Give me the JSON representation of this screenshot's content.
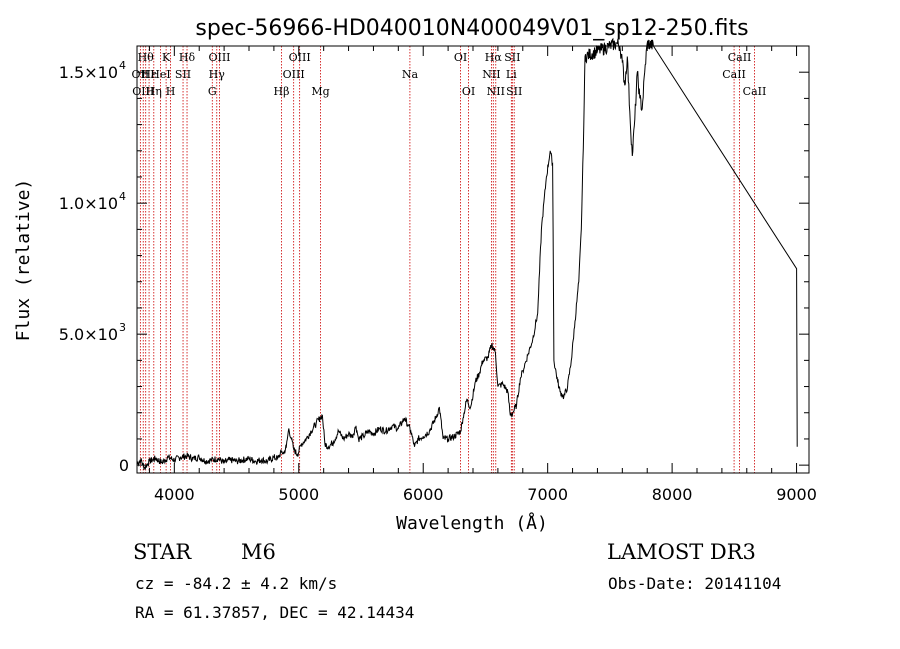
{
  "chart_data": {
    "type": "line",
    "title": "spec-56966-HD040010N400049V01_sp12-250.fits",
    "xlabel": "Wavelength (Å)",
    "ylabel": "Flux (relative)",
    "xlim": [
      3700,
      9100
    ],
    "ylim": [
      -300,
      16000
    ],
    "xticks": [
      {
        "value": 4000,
        "label": "4000"
      },
      {
        "value": 5000,
        "label": "5000"
      },
      {
        "value": 6000,
        "label": "6000"
      },
      {
        "value": 7000,
        "label": "7000"
      },
      {
        "value": 8000,
        "label": "8000"
      },
      {
        "value": 9000,
        "label": "9000"
      }
    ],
    "yticks": [
      {
        "value": 0,
        "mant": "0",
        "exp": ""
      },
      {
        "value": 5000,
        "mant": "5.0×10",
        "exp": "3"
      },
      {
        "value": 10000,
        "mant": "1.0×10",
        "exp": "4"
      },
      {
        "value": 15000,
        "mant": "1.5×10",
        "exp": "4"
      }
    ],
    "line_color": "#000000",
    "marker_color": "#cc0000",
    "series": [
      {
        "points": [
          [
            3700,
            50
          ],
          [
            3730,
            200
          ],
          [
            3760,
            -100
          ],
          [
            3800,
            150
          ],
          [
            3850,
            250
          ],
          [
            3900,
            100
          ],
          [
            3950,
            300
          ],
          [
            4000,
            200
          ],
          [
            4050,
            300
          ],
          [
            4100,
            350
          ],
          [
            4150,
            250
          ],
          [
            4200,
            300
          ],
          [
            4250,
            150
          ],
          [
            4300,
            200
          ],
          [
            4350,
            250
          ],
          [
            4400,
            100
          ],
          [
            4450,
            200
          ],
          [
            4500,
            150
          ],
          [
            4550,
            200
          ],
          [
            4600,
            250
          ],
          [
            4650,
            150
          ],
          [
            4700,
            200
          ],
          [
            4750,
            150
          ],
          [
            4800,
            300
          ],
          [
            4830,
            250
          ],
          [
            4860,
            500
          ],
          [
            4880,
            450
          ],
          [
            4900,
            700
          ],
          [
            4920,
            1400
          ],
          [
            4940,
            1000
          ],
          [
            4960,
            600
          ],
          [
            4990,
            400
          ],
          [
            5020,
            800
          ],
          [
            5060,
            1000
          ],
          [
            5100,
            1300
          ],
          [
            5140,
            1600
          ],
          [
            5170,
            1800
          ],
          [
            5190,
            1900
          ],
          [
            5210,
            800
          ],
          [
            5240,
            700
          ],
          [
            5280,
            900
          ],
          [
            5320,
            1300
          ],
          [
            5360,
            1000
          ],
          [
            5400,
            1200
          ],
          [
            5430,
            1100
          ],
          [
            5460,
            1500
          ],
          [
            5480,
            1000
          ],
          [
            5520,
            1100
          ],
          [
            5560,
            1300
          ],
          [
            5600,
            1200
          ],
          [
            5650,
            1400
          ],
          [
            5700,
            1300
          ],
          [
            5750,
            1500
          ],
          [
            5800,
            1400
          ],
          [
            5850,
            1800
          ],
          [
            5880,
            1500
          ],
          [
            5900,
            1300
          ],
          [
            5930,
            700
          ],
          [
            5960,
            1000
          ],
          [
            6000,
            1100
          ],
          [
            6050,
            1300
          ],
          [
            6100,
            1800
          ],
          [
            6130,
            2200
          ],
          [
            6160,
            1000
          ],
          [
            6200,
            1000
          ],
          [
            6250,
            1100
          ],
          [
            6300,
            1300
          ],
          [
            6320,
            1800
          ],
          [
            6350,
            2500
          ],
          [
            6380,
            2200
          ],
          [
            6420,
            3200
          ],
          [
            6450,
            3500
          ],
          [
            6480,
            4000
          ],
          [
            6520,
            4100
          ],
          [
            6550,
            4600
          ],
          [
            6580,
            4300
          ],
          [
            6600,
            3000
          ],
          [
            6640,
            3100
          ],
          [
            6680,
            2800
          ],
          [
            6700,
            1900
          ],
          [
            6720,
            2000
          ],
          [
            6750,
            2300
          ],
          [
            6780,
            3300
          ],
          [
            6800,
            3600
          ],
          [
            6840,
            4200
          ],
          [
            6880,
            4800
          ],
          [
            6920,
            5800
          ],
          [
            6950,
            9000
          ],
          [
            6990,
            11000
          ],
          [
            7020,
            12000
          ],
          [
            7040,
            11500
          ],
          [
            7050,
            4000
          ],
          [
            7080,
            3200
          ],
          [
            7100,
            2800
          ],
          [
            7130,
            2600
          ],
          [
            7160,
            3000
          ],
          [
            7190,
            4000
          ],
          [
            7220,
            5500
          ],
          [
            7250,
            7000
          ],
          [
            7270,
            9000
          ],
          [
            7290,
            13000
          ],
          [
            7300,
            15600
          ],
          [
            7400,
            15800
          ],
          [
            7500,
            16000
          ],
          [
            7560,
            16100
          ],
          [
            7580,
            16000
          ],
          [
            7600,
            15400
          ],
          [
            7620,
            14500
          ],
          [
            7640,
            15600
          ],
          [
            7660,
            13500
          ],
          [
            7680,
            11800
          ],
          [
            7700,
            13200
          ],
          [
            7720,
            15000
          ],
          [
            7740,
            14000
          ],
          [
            7760,
            13600
          ],
          [
            7780,
            15000
          ],
          [
            7800,
            16100
          ],
          [
            7850,
            16000
          ],
          [
            9000,
            7500
          ],
          [
            9005,
            700
          ]
        ]
      }
    ],
    "lines": [
      {
        "x": 3727,
        "row": 1,
        "label": "OII"
      },
      {
        "x": 3750,
        "row": 2,
        "label": "OIII"
      },
      {
        "x": 3770,
        "row": 0,
        "label": "Hθ"
      },
      {
        "x": 3797,
        "row": 1,
        "label": "Hε"
      },
      {
        "x": 3835,
        "row": 2,
        "label": "Hη"
      },
      {
        "x": 3889,
        "row": 1,
        "label": "HeI"
      },
      {
        "x": 3934,
        "row": 0,
        "label": "K"
      },
      {
        "x": 3970,
        "row": 2,
        "label": "H"
      },
      {
        "x": 4070,
        "row": 1,
        "label": "SII"
      },
      {
        "x": 4102,
        "row": 0,
        "label": "Hδ"
      },
      {
        "x": 4305,
        "row": 2,
        "label": "G"
      },
      {
        "x": 4341,
        "row": 1,
        "label": "Hγ"
      },
      {
        "x": 4363,
        "row": 0,
        "label": "OIII"
      },
      {
        "x": 4861,
        "row": 2,
        "label": "Hβ"
      },
      {
        "x": 4959,
        "row": 1,
        "label": "OIII"
      },
      {
        "x": 5007,
        "row": 0,
        "label": "OIII"
      },
      {
        "x": 5175,
        "row": 2,
        "label": "Mg"
      },
      {
        "x": 5893,
        "row": 1,
        "label": "Na"
      },
      {
        "x": 6300,
        "row": 0,
        "label": "OI"
      },
      {
        "x": 6364,
        "row": 2,
        "label": "OI"
      },
      {
        "x": 6548,
        "row": 1,
        "label": "NII"
      },
      {
        "x": 6563,
        "row": 0,
        "label": "Hα"
      },
      {
        "x": 6583,
        "row": 2,
        "label": "NII"
      },
      {
        "x": 6708,
        "row": 1,
        "label": "Li"
      },
      {
        "x": 6716,
        "row": 0,
        "label": "SII"
      },
      {
        "x": 6731,
        "row": 2,
        "label": "SII"
      },
      {
        "x": 8498,
        "row": 1,
        "label": "CaII"
      },
      {
        "x": 8542,
        "row": 0,
        "label": "CaII"
      },
      {
        "x": 8662,
        "row": 2,
        "label": "CaII"
      }
    ]
  },
  "info": {
    "object_class": "STAR",
    "subclass": "M6",
    "cz": "cz = -84.2 ± 4.2 km/s",
    "radec": "RA =  61.37857, DEC =  42.14434",
    "survey": "LAMOST DR3",
    "obs_date": "Obs-Date: 20141104"
  }
}
